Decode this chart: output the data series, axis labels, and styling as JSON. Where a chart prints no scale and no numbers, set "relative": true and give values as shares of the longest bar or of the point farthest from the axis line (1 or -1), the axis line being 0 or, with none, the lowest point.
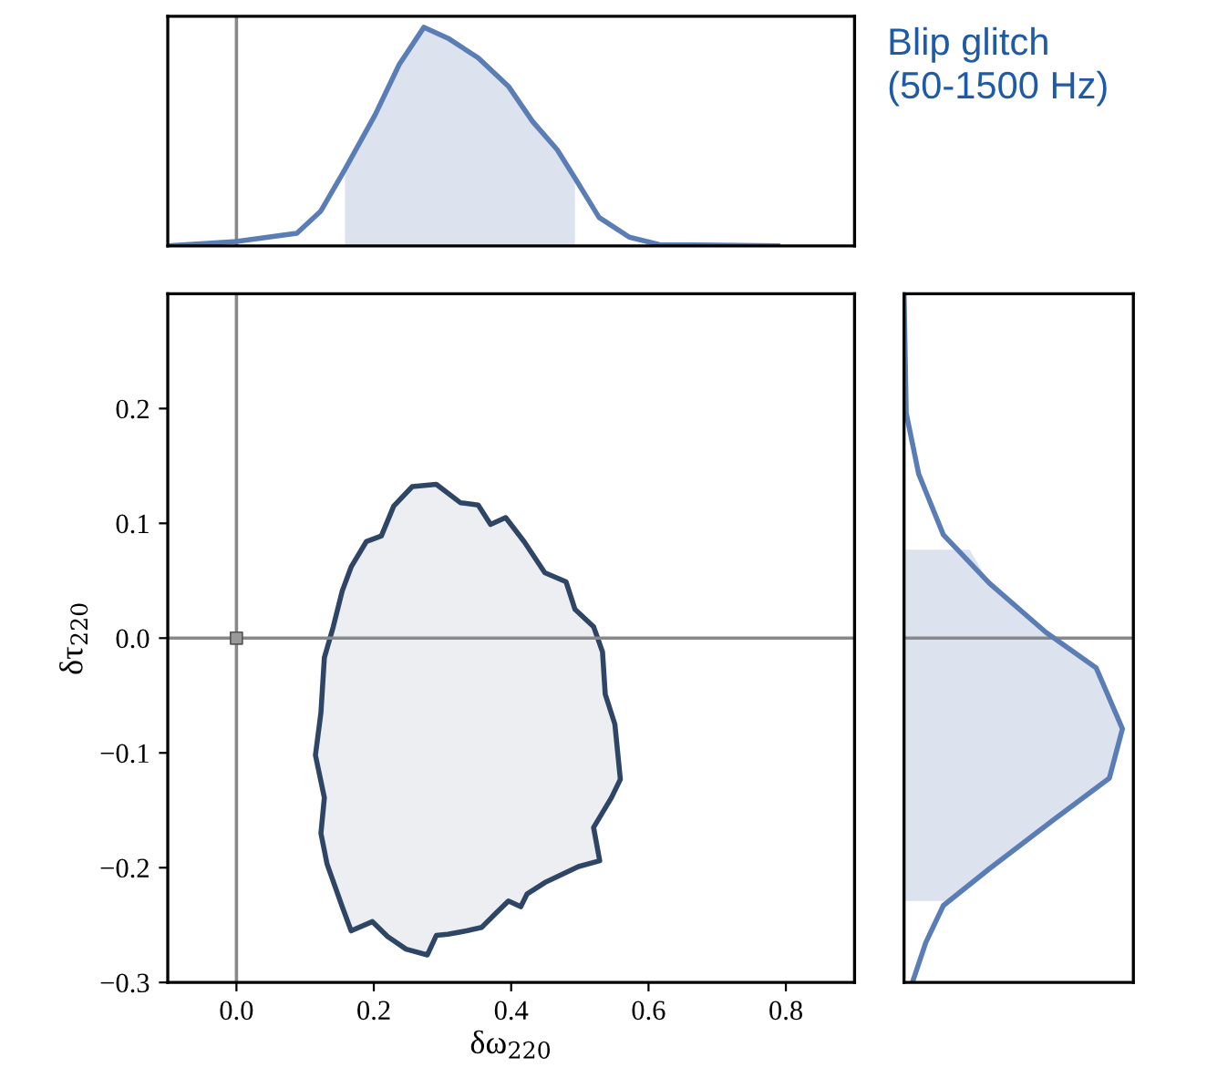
{
  "chart_data": [
    {
      "type": "line",
      "relative": true,
      "xlim": [
        -0.1,
        0.9
      ],
      "tick_labels": false,
      "annotations": [
        "Blip glitch\n(50-1500 Hz)"
      ],
      "ref_lines": [
        {
          "axis": "x",
          "value": 0,
          "color": "#888888"
        }
      ],
      "series": [
        {
          "type": "area",
          "color": "#dce3ef",
          "x": [
            0.158,
            0.202,
            0.237,
            0.273,
            0.308,
            0.352,
            0.396,
            0.431,
            0.467,
            0.493
          ],
          "values": [
            0.35,
            0.6,
            0.83,
            1.0,
            0.95,
            0.86,
            0.73,
            0.57,
            0.44,
            0.31
          ]
        },
        {
          "color": "#5b7db5",
          "x": [
            -0.1,
            0.0,
            0.088,
            0.123,
            0.158,
            0.202,
            0.237,
            0.273,
            0.308,
            0.352,
            0.396,
            0.431,
            0.467,
            0.493,
            0.528,
            0.572,
            0.616,
            0.788
          ],
          "values": [
            0,
            0.02,
            0.058,
            0.16,
            0.35,
            0.6,
            0.83,
            1.0,
            0.95,
            0.86,
            0.73,
            0.57,
            0.44,
            0.31,
            0.13,
            0.04,
            0.006,
            0
          ]
        }
      ]
    },
    {
      "type": "line",
      "xlim": [
        -0.1,
        0.9
      ],
      "ylim": [
        -0.3,
        0.3
      ],
      "xlabel": "δω$_{220}$",
      "ylabel": "δτ$_{220}$",
      "xticks": [
        {
          "value": 0.0,
          "label": "0.0"
        },
        0.2,
        0.4,
        0.6,
        0.8
      ],
      "yticks": [
        {
          "value": -0.3,
          "label": "−0.3"
        },
        {
          "value": -0.2,
          "label": "−0.2"
        },
        {
          "value": -0.1,
          "label": "−0.1"
        },
        {
          "value": 0.0,
          "label": "0.0"
        },
        0.1,
        0.2
      ],
      "ref_lines": [
        {
          "axis": "x",
          "value": 0,
          "color": "#888888"
        },
        {
          "axis": "y",
          "value": 0,
          "color": "#888888"
        }
      ],
      "series": [
        {
          "type": "area",
          "color": "#2e4566",
          "x": [
            0.256,
            0.291,
            0.326,
            0.352,
            0.37,
            0.392,
            0.419,
            0.449,
            0.48,
            0.493,
            0.52,
            0.533,
            0.537,
            0.551,
            0.559,
            0.546,
            0.52,
            0.529,
            0.498,
            0.449,
            0.423,
            0.414,
            0.396,
            0.379,
            0.357,
            0.335,
            0.308,
            0.291,
            0.278,
            0.247,
            0.22,
            0.198,
            0.167,
            0.154,
            0.132,
            0.123,
            0.128,
            0.115,
            0.123,
            0.128,
            0.141,
            0.154,
            0.167,
            0.189,
            0.211,
            0.229,
            0.256
          ],
          "values": [
            0.132,
            0.134,
            0.118,
            0.116,
            0.099,
            0.105,
            0.084,
            0.057,
            0.049,
            0.025,
            0.01,
            -0.012,
            -0.049,
            -0.075,
            -0.123,
            -0.139,
            -0.165,
            -0.194,
            -0.199,
            -0.213,
            -0.223,
            -0.234,
            -0.229,
            -0.239,
            -0.252,
            -0.255,
            -0.258,
            -0.259,
            -0.276,
            -0.271,
            -0.26,
            -0.247,
            -0.255,
            -0.234,
            -0.197,
            -0.17,
            -0.139,
            -0.102,
            -0.065,
            -0.017,
            0.01,
            0.041,
            0.062,
            0.084,
            0.089,
            0.115,
            0.132
          ]
        },
        {
          "type": "scatter",
          "marker": "square",
          "color": "#999999",
          "x": [
            0.0
          ],
          "values": [
            0.0
          ]
        }
      ]
    },
    {
      "type": "line",
      "relative": true,
      "orientation": "horizontal",
      "ylim": [
        -0.3,
        0.3
      ],
      "tick_labels": false,
      "ref_lines": [
        {
          "axis": "y",
          "value": 0,
          "color": "#888888"
        }
      ],
      "series": [
        {
          "type": "area",
          "color": "#dce3ef",
          "x": [
            0.077,
            0.048,
            0.005,
            -0.026,
            -0.079,
            -0.122,
            -0.159,
            -0.201,
            -0.229
          ],
          "values": [
            0.3,
            0.39,
            0.65,
            0.88,
            1.0,
            0.94,
            0.68,
            0.39,
            0.2
          ]
        },
        {
          "color": "#5b7db5",
          "x": [
            0.301,
            0.196,
            0.143,
            0.09,
            0.048,
            0.005,
            -0.026,
            -0.079,
            -0.122,
            -0.159,
            -0.201,
            -0.233,
            -0.265,
            -0.299
          ],
          "values": [
            0,
            0.01,
            0.067,
            0.18,
            0.39,
            0.65,
            0.88,
            1.0,
            0.94,
            0.68,
            0.39,
            0.18,
            0.1,
            0.04
          ]
        }
      ]
    }
  ]
}
